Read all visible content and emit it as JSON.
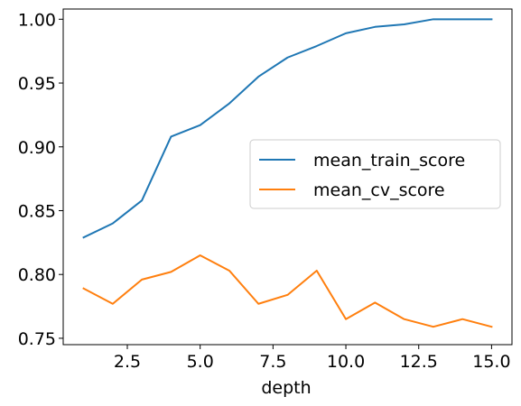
{
  "chart_data": {
    "type": "line",
    "title": "",
    "xlabel": "depth",
    "ylabel": "",
    "xlim": [
      0.3,
      15.7
    ],
    "ylim": [
      0.745,
      1.008
    ],
    "xticks": [
      2.5,
      5.0,
      7.5,
      10.0,
      12.5,
      15.0
    ],
    "xtick_labels": [
      "2.5",
      "5.0",
      "7.5",
      "10.0",
      "12.5",
      "15.0"
    ],
    "yticks": [
      0.75,
      0.8,
      0.85,
      0.9,
      0.95,
      1.0
    ],
    "ytick_labels": [
      "0.75",
      "0.80",
      "0.85",
      "0.90",
      "0.95",
      "1.00"
    ],
    "grid": false,
    "legend_position": "center-right",
    "x": [
      1,
      2,
      3,
      4,
      5,
      6,
      7,
      8,
      9,
      10,
      11,
      12,
      13,
      14,
      15
    ],
    "series": [
      {
        "name": "mean_train_score",
        "color": "#1f77b4",
        "values": [
          0.829,
          0.84,
          0.858,
          0.908,
          0.917,
          0.934,
          0.955,
          0.97,
          0.979,
          0.989,
          0.994,
          0.996,
          1.0,
          1.0,
          1.0
        ]
      },
      {
        "name": "mean_cv_score",
        "color": "#ff7f0e",
        "values": [
          0.789,
          0.777,
          0.796,
          0.802,
          0.815,
          0.803,
          0.777,
          0.784,
          0.803,
          0.765,
          0.778,
          0.765,
          0.759,
          0.765,
          0.759
        ]
      }
    ]
  }
}
